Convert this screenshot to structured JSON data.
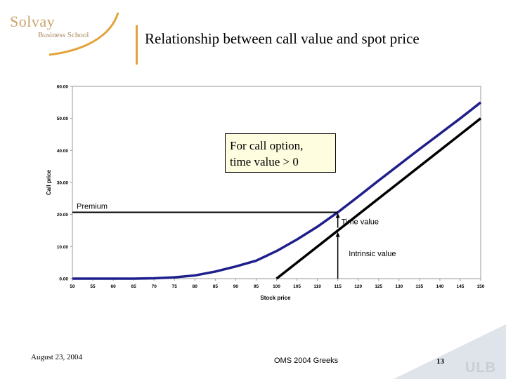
{
  "logo": {
    "name": "Solvay",
    "subtitle": "Business School"
  },
  "slide": {
    "title": "Relationship between call value and spot price"
  },
  "callout": {
    "line1": "For call option,",
    "line2": "time value > 0"
  },
  "footer": {
    "date": "August 23, 2004",
    "center": "OMS 2004 Greeks",
    "page": "13",
    "logo_text": "ULB"
  },
  "colors": {
    "call_curve": "#1e1e8c",
    "intrinsic_line": "#000000",
    "accent": "#e3a23a",
    "footer_band": "#dfe3ea"
  },
  "chart_data": {
    "type": "line",
    "xlabel": "Stock price",
    "ylabel": "Call price",
    "xlim": [
      50,
      150
    ],
    "ylim": [
      0,
      60
    ],
    "x_ticks": [
      "50",
      "55",
      "60",
      "65",
      "70",
      "75",
      "80",
      "85",
      "90",
      "95",
      "100",
      "105",
      "110",
      "115",
      "120",
      "125",
      "130",
      "135",
      "140",
      "145",
      "150"
    ],
    "y_ticks": [
      "0.00",
      "10.00",
      "20.00",
      "30.00",
      "40.00",
      "50.00",
      "60.00"
    ],
    "grid": false,
    "series": [
      {
        "name": "",
        "x": [
          50,
          55,
          60,
          65,
          70,
          75,
          80,
          85,
          90,
          95,
          100,
          105,
          110,
          115,
          120,
          125,
          130,
          135,
          140,
          145,
          150
        ],
        "values": [
          0,
          0,
          0,
          0,
          0.1,
          0.4,
          1.0,
          2.2,
          3.8,
          5.6,
          8.6,
          12.2,
          16.2,
          20.7,
          25.6,
          30.6,
          35.5,
          40.4,
          45.2,
          50.0,
          55.0
        ]
      },
      {
        "name": "",
        "x": [
          100,
          150
        ],
        "values": [
          0,
          50
        ]
      }
    ],
    "annotations": [
      {
        "text": "Premium",
        "x": 50,
        "y": 20.7
      },
      {
        "text": "Time value",
        "x": 115,
        "y": 17
      },
      {
        "text": "Intrinsic value",
        "x": 117,
        "y": 7
      }
    ],
    "reference_x": 115,
    "premium_level": 20.7,
    "intrinsic_at_reference": 15
  }
}
